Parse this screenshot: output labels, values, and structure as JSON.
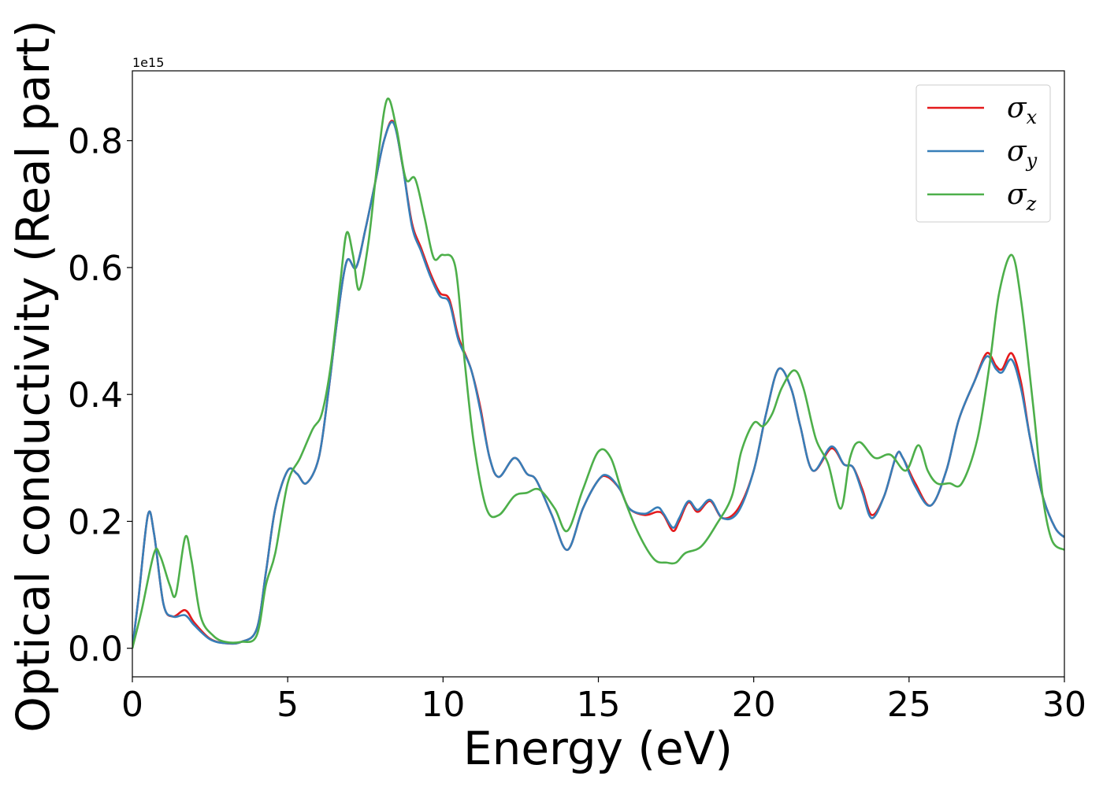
{
  "chart_data": {
    "type": "line",
    "xlabel": "Energy (eV)",
    "ylabel": "Optical conductivity (Real part)",
    "y_offset_label": "1e15",
    "xlim": [
      0,
      30
    ],
    "ylim": [
      -0.045,
      0.91
    ],
    "x_ticks": [
      0,
      5,
      10,
      15,
      20,
      25,
      30
    ],
    "x_tick_labels": [
      "0",
      "5",
      "10",
      "15",
      "20",
      "25",
      "30"
    ],
    "y_ticks": [
      0.0,
      0.2,
      0.4,
      0.6,
      0.8
    ],
    "y_tick_labels": [
      "0.0",
      "0.2",
      "0.4",
      "0.6",
      "0.8"
    ],
    "grid": false,
    "legend_position": "top-right",
    "series": [
      {
        "name": "σ",
        "subscript": "x",
        "color": "#e41a1c",
        "points": [
          [
            0,
            0.0
          ],
          [
            0.2,
            0.08
          ],
          [
            0.5,
            0.21
          ],
          [
            0.7,
            0.18
          ],
          [
            1.0,
            0.07
          ],
          [
            1.3,
            0.05
          ],
          [
            1.7,
            0.06
          ],
          [
            2.0,
            0.04
          ],
          [
            2.5,
            0.015
          ],
          [
            3.0,
            0.008
          ],
          [
            3.5,
            0.01
          ],
          [
            4.0,
            0.03
          ],
          [
            4.3,
            0.12
          ],
          [
            4.6,
            0.22
          ],
          [
            5.0,
            0.28
          ],
          [
            5.3,
            0.275
          ],
          [
            5.6,
            0.26
          ],
          [
            6.0,
            0.3
          ],
          [
            6.3,
            0.4
          ],
          [
            6.6,
            0.52
          ],
          [
            6.9,
            0.61
          ],
          [
            7.2,
            0.6
          ],
          [
            7.5,
            0.66
          ],
          [
            7.8,
            0.73
          ],
          [
            8.1,
            0.8
          ],
          [
            8.4,
            0.83
          ],
          [
            8.7,
            0.76
          ],
          [
            9.0,
            0.67
          ],
          [
            9.3,
            0.63
          ],
          [
            9.6,
            0.59
          ],
          [
            9.9,
            0.56
          ],
          [
            10.2,
            0.55
          ],
          [
            10.5,
            0.49
          ],
          [
            10.9,
            0.44
          ],
          [
            11.2,
            0.38
          ],
          [
            11.5,
            0.3
          ],
          [
            11.8,
            0.27
          ],
          [
            12.3,
            0.3
          ],
          [
            12.7,
            0.275
          ],
          [
            13.0,
            0.265
          ],
          [
            13.5,
            0.21
          ],
          [
            14.0,
            0.155
          ],
          [
            14.5,
            0.22
          ],
          [
            15.0,
            0.265
          ],
          [
            15.3,
            0.27
          ],
          [
            15.7,
            0.25
          ],
          [
            16.0,
            0.22
          ],
          [
            16.5,
            0.21
          ],
          [
            16.9,
            0.215
          ],
          [
            17.1,
            0.21
          ],
          [
            17.4,
            0.185
          ],
          [
            17.6,
            0.2
          ],
          [
            17.9,
            0.23
          ],
          [
            18.2,
            0.215
          ],
          [
            18.6,
            0.232
          ],
          [
            19.0,
            0.205
          ],
          [
            19.5,
            0.22
          ],
          [
            20.0,
            0.28
          ],
          [
            20.4,
            0.37
          ],
          [
            20.8,
            0.44
          ],
          [
            21.2,
            0.41
          ],
          [
            21.5,
            0.35
          ],
          [
            21.9,
            0.28
          ],
          [
            22.5,
            0.315
          ],
          [
            22.9,
            0.29
          ],
          [
            23.2,
            0.285
          ],
          [
            23.5,
            0.25
          ],
          [
            23.8,
            0.21
          ],
          [
            24.2,
            0.24
          ],
          [
            24.6,
            0.305
          ],
          [
            24.8,
            0.3
          ],
          [
            25.2,
            0.26
          ],
          [
            25.7,
            0.225
          ],
          [
            26.2,
            0.28
          ],
          [
            26.6,
            0.36
          ],
          [
            27.1,
            0.42
          ],
          [
            27.5,
            0.465
          ],
          [
            27.8,
            0.445
          ],
          [
            28.0,
            0.44
          ],
          [
            28.3,
            0.465
          ],
          [
            28.6,
            0.42
          ],
          [
            28.9,
            0.33
          ],
          [
            29.3,
            0.24
          ],
          [
            29.7,
            0.19
          ],
          [
            30.0,
            0.175
          ]
        ]
      },
      {
        "name": "σ",
        "subscript": "y",
        "color": "#377eb8",
        "points": [
          [
            0,
            0.0
          ],
          [
            0.2,
            0.08
          ],
          [
            0.5,
            0.21
          ],
          [
            0.7,
            0.18
          ],
          [
            1.0,
            0.07
          ],
          [
            1.3,
            0.05
          ],
          [
            1.7,
            0.052
          ],
          [
            2.0,
            0.036
          ],
          [
            2.5,
            0.014
          ],
          [
            3.0,
            0.008
          ],
          [
            3.5,
            0.01
          ],
          [
            4.0,
            0.03
          ],
          [
            4.3,
            0.12
          ],
          [
            4.6,
            0.22
          ],
          [
            5.0,
            0.28
          ],
          [
            5.3,
            0.275
          ],
          [
            5.6,
            0.26
          ],
          [
            6.0,
            0.3
          ],
          [
            6.3,
            0.4
          ],
          [
            6.6,
            0.52
          ],
          [
            6.9,
            0.61
          ],
          [
            7.2,
            0.6
          ],
          [
            7.5,
            0.66
          ],
          [
            7.8,
            0.73
          ],
          [
            8.1,
            0.8
          ],
          [
            8.4,
            0.828
          ],
          [
            8.7,
            0.76
          ],
          [
            9.0,
            0.665
          ],
          [
            9.3,
            0.625
          ],
          [
            9.6,
            0.585
          ],
          [
            9.9,
            0.555
          ],
          [
            10.2,
            0.545
          ],
          [
            10.5,
            0.485
          ],
          [
            10.9,
            0.44
          ],
          [
            11.2,
            0.375
          ],
          [
            11.5,
            0.3
          ],
          [
            11.8,
            0.27
          ],
          [
            12.3,
            0.3
          ],
          [
            12.7,
            0.275
          ],
          [
            13.0,
            0.265
          ],
          [
            13.5,
            0.21
          ],
          [
            14.0,
            0.155
          ],
          [
            14.5,
            0.22
          ],
          [
            15.0,
            0.265
          ],
          [
            15.3,
            0.272
          ],
          [
            15.7,
            0.25
          ],
          [
            16.0,
            0.22
          ],
          [
            16.5,
            0.212
          ],
          [
            16.9,
            0.222
          ],
          [
            17.1,
            0.212
          ],
          [
            17.4,
            0.19
          ],
          [
            17.6,
            0.205
          ],
          [
            17.9,
            0.232
          ],
          [
            18.2,
            0.218
          ],
          [
            18.6,
            0.234
          ],
          [
            19.0,
            0.205
          ],
          [
            19.5,
            0.215
          ],
          [
            20.0,
            0.28
          ],
          [
            20.4,
            0.37
          ],
          [
            20.8,
            0.44
          ],
          [
            21.2,
            0.41
          ],
          [
            21.5,
            0.35
          ],
          [
            21.9,
            0.28
          ],
          [
            22.5,
            0.318
          ],
          [
            22.9,
            0.29
          ],
          [
            23.2,
            0.285
          ],
          [
            23.5,
            0.245
          ],
          [
            23.8,
            0.205
          ],
          [
            24.2,
            0.24
          ],
          [
            24.6,
            0.305
          ],
          [
            24.8,
            0.3
          ],
          [
            25.2,
            0.255
          ],
          [
            25.7,
            0.225
          ],
          [
            26.2,
            0.28
          ],
          [
            26.6,
            0.36
          ],
          [
            27.1,
            0.42
          ],
          [
            27.5,
            0.46
          ],
          [
            27.8,
            0.44
          ],
          [
            28.0,
            0.435
          ],
          [
            28.3,
            0.455
          ],
          [
            28.6,
            0.41
          ],
          [
            28.9,
            0.33
          ],
          [
            29.3,
            0.24
          ],
          [
            29.7,
            0.19
          ],
          [
            30.0,
            0.175
          ]
        ]
      },
      {
        "name": "σ",
        "subscript": "z",
        "color": "#4daf4a",
        "points": [
          [
            0,
            0.0
          ],
          [
            0.3,
            0.06
          ],
          [
            0.7,
            0.15
          ],
          [
            0.9,
            0.145
          ],
          [
            1.2,
            0.1
          ],
          [
            1.4,
            0.085
          ],
          [
            1.7,
            0.175
          ],
          [
            1.9,
            0.14
          ],
          [
            2.2,
            0.05
          ],
          [
            2.6,
            0.02
          ],
          [
            3.0,
            0.01
          ],
          [
            3.5,
            0.01
          ],
          [
            4.0,
            0.02
          ],
          [
            4.3,
            0.1
          ],
          [
            4.6,
            0.15
          ],
          [
            5.0,
            0.26
          ],
          [
            5.4,
            0.3
          ],
          [
            5.8,
            0.345
          ],
          [
            6.1,
            0.37
          ],
          [
            6.4,
            0.45
          ],
          [
            6.7,
            0.58
          ],
          [
            6.9,
            0.655
          ],
          [
            7.1,
            0.62
          ],
          [
            7.3,
            0.565
          ],
          [
            7.6,
            0.64
          ],
          [
            7.9,
            0.77
          ],
          [
            8.2,
            0.865
          ],
          [
            8.5,
            0.82
          ],
          [
            8.8,
            0.74
          ],
          [
            9.1,
            0.74
          ],
          [
            9.4,
            0.68
          ],
          [
            9.7,
            0.615
          ],
          [
            10.0,
            0.62
          ],
          [
            10.4,
            0.6
          ],
          [
            10.7,
            0.45
          ],
          [
            11.0,
            0.32
          ],
          [
            11.4,
            0.22
          ],
          [
            11.8,
            0.21
          ],
          [
            12.3,
            0.24
          ],
          [
            12.7,
            0.245
          ],
          [
            13.1,
            0.25
          ],
          [
            13.6,
            0.22
          ],
          [
            14.0,
            0.185
          ],
          [
            14.5,
            0.25
          ],
          [
            15.0,
            0.31
          ],
          [
            15.4,
            0.3
          ],
          [
            15.8,
            0.24
          ],
          [
            16.3,
            0.18
          ],
          [
            16.8,
            0.14
          ],
          [
            17.2,
            0.135
          ],
          [
            17.5,
            0.135
          ],
          [
            17.8,
            0.15
          ],
          [
            18.3,
            0.16
          ],
          [
            18.8,
            0.195
          ],
          [
            19.3,
            0.24
          ],
          [
            19.6,
            0.31
          ],
          [
            20.0,
            0.355
          ],
          [
            20.3,
            0.35
          ],
          [
            20.6,
            0.37
          ],
          [
            20.9,
            0.41
          ],
          [
            21.3,
            0.438
          ],
          [
            21.6,
            0.41
          ],
          [
            22.0,
            0.33
          ],
          [
            22.4,
            0.29
          ],
          [
            22.8,
            0.22
          ],
          [
            23.1,
            0.3
          ],
          [
            23.4,
            0.325
          ],
          [
            23.9,
            0.3
          ],
          [
            24.4,
            0.305
          ],
          [
            24.9,
            0.28
          ],
          [
            25.3,
            0.32
          ],
          [
            25.6,
            0.28
          ],
          [
            25.9,
            0.26
          ],
          [
            26.3,
            0.26
          ],
          [
            26.7,
            0.26
          ],
          [
            27.2,
            0.33
          ],
          [
            27.6,
            0.45
          ],
          [
            27.9,
            0.56
          ],
          [
            28.3,
            0.62
          ],
          [
            28.6,
            0.55
          ],
          [
            29.0,
            0.38
          ],
          [
            29.3,
            0.24
          ],
          [
            29.6,
            0.17
          ],
          [
            30.0,
            0.155
          ]
        ]
      }
    ]
  }
}
